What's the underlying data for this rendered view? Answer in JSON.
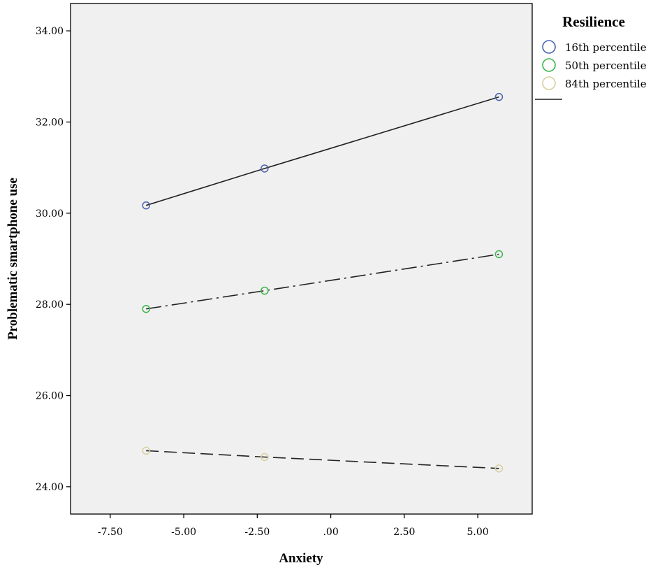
{
  "chart_data": {
    "type": "line",
    "title": "",
    "xlabel": "Anxiety",
    "ylabel": "Problematic smartphone use",
    "xlim": [
      -8.85,
      6.85
    ],
    "ylim": [
      23.4,
      34.6
    ],
    "x_ticks": [
      -7.5,
      -5.0,
      -2.5,
      0.0,
      2.5,
      5.0
    ],
    "x_tick_labels": [
      "-7.50",
      "-5.00",
      "-2.50",
      ".00",
      "2.50",
      "5.00"
    ],
    "y_ticks": [
      24,
      26,
      28,
      30,
      32,
      34
    ],
    "y_tick_labels": [
      "24.00",
      "26.00",
      "28.00",
      "30.00",
      "32.00",
      "34.00"
    ],
    "grid": false,
    "plot_background": "#f0f0f0",
    "legend": {
      "title": "Resilience",
      "placement": "top-right, outside plot"
    },
    "series": [
      {
        "name": "16th percentile",
        "marker_color": "#4a62b0",
        "line_style": "solid",
        "x": [
          -6.28,
          -2.25,
          5.72
        ],
        "y": [
          30.17,
          30.98,
          32.55
        ]
      },
      {
        "name": "50th percentile",
        "marker_color": "#3cb44b",
        "line_style": "dash-dot",
        "x": [
          -6.28,
          -2.25,
          5.72
        ],
        "y": [
          27.9,
          28.3,
          29.1
        ]
      },
      {
        "name": "84th percentile",
        "marker_color": "#d8cfa0",
        "line_style": "dashed",
        "x": [
          -6.28,
          -2.25,
          5.72
        ],
        "y": [
          24.79,
          24.65,
          24.4
        ]
      }
    ]
  }
}
